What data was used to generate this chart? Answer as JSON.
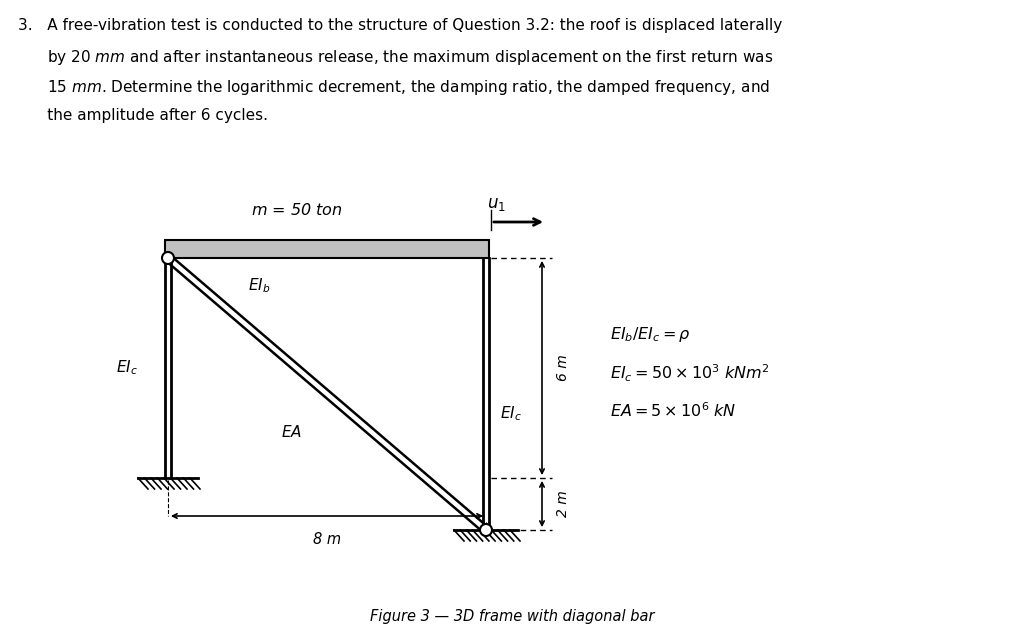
{
  "bg_color": "#ffffff",
  "figure_caption": "Figure 3 — 3D frame with diagonal bar",
  "label_m": "$m$ = 50 $ton$",
  "label_EIb": "$EI_b$",
  "label_EIc_left": "$EI_c$",
  "label_EIc_right": "$EI_c$",
  "label_EA": "$EA$",
  "label_u1": "$u_1$",
  "label_6m": "6 m",
  "label_2m": "2 m",
  "label_8m": "8 m",
  "eq1": "$EI_b/EI_c = \\rho$",
  "eq2": "$EI_c = 50 \\times 10^3$ $kNm^2$",
  "eq3": "$EA = 5 \\times 10^6$ $kN$",
  "para_line1": "3.   A free-vibration test is conducted to the structure of Question 3.2: the roof is displaced laterally",
  "para_line2": "      by 20 $mm$ and after instantaneous release, the maximum displacement on the first return was",
  "para_line3": "      15 $mm$. Determine the logarithmic decrement, the damping ratio, the damped frequency, and",
  "para_line4": "      the amplitude after 6 cycles."
}
